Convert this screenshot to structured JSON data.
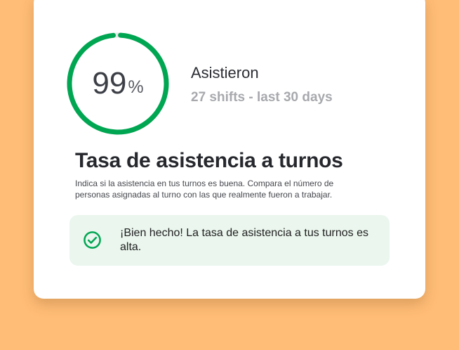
{
  "metric": {
    "value": "99",
    "unit": "%",
    "progress": 0.99,
    "label": "Asistieron",
    "subtitle": "27 shifts - last 30 days"
  },
  "title": "Tasa de asistencia a turnos",
  "description": "Indica si la asistencia en tus turnos es buena. Compara el número de personas asignadas al turno con las que realmente fueron a trabajar.",
  "alert": {
    "icon": "check-circle-icon",
    "message": "¡Bien hecho! La tasa de asistencia a tus turnos es alta."
  },
  "colors": {
    "background": "#ffbd77",
    "accent": "#00a651",
    "track": "#e6e6e6",
    "alert_bg": "#eaf6ee"
  }
}
